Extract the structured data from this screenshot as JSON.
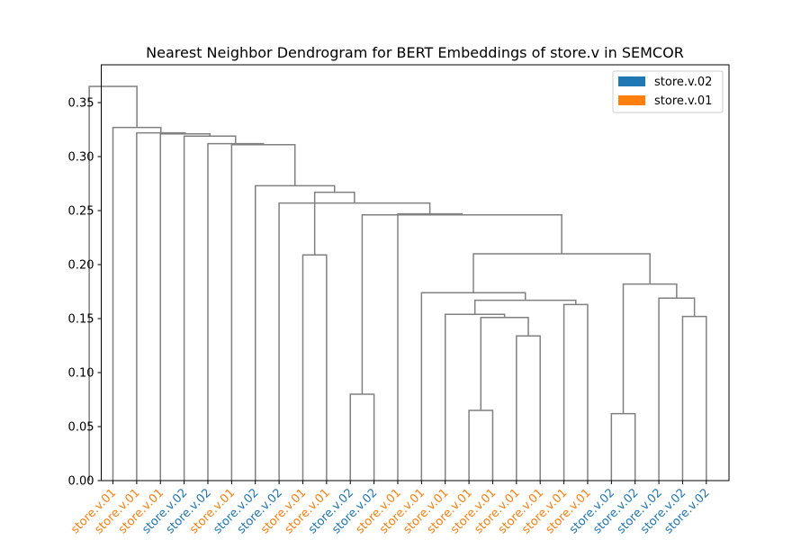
{
  "chart_data": {
    "type": "dendrogram",
    "title": "Nearest Neighbor Dendrogram for BERT Embeddings of store.v in SEMCOR",
    "xlabel": "",
    "ylabel": "",
    "ylim": [
      0,
      0.385
    ],
    "yticks": [
      "0.00",
      "0.05",
      "0.10",
      "0.15",
      "0.20",
      "0.25",
      "0.30",
      "0.35"
    ],
    "ytick_values": [
      0,
      0.05,
      0.1,
      0.15,
      0.2,
      0.25,
      0.3,
      0.35
    ],
    "grid": false,
    "legend_position": "top-right",
    "line_color": "#808080",
    "legend": [
      {
        "label": "store.v.02",
        "color": "#1f77b4"
      },
      {
        "label": "store.v.01",
        "color": "#ff7f0e"
      }
    ],
    "leaves": [
      {
        "label": "store.v.01",
        "class": "store.v.01"
      },
      {
        "label": "store.v.01",
        "class": "store.v.01"
      },
      {
        "label": "store.v.01",
        "class": "store.v.01"
      },
      {
        "label": "store.v.02",
        "class": "store.v.02"
      },
      {
        "label": "store.v.02",
        "class": "store.v.02"
      },
      {
        "label": "store.v.01",
        "class": "store.v.01"
      },
      {
        "label": "store.v.02",
        "class": "store.v.02"
      },
      {
        "label": "store.v.02",
        "class": "store.v.02"
      },
      {
        "label": "store.v.01",
        "class": "store.v.01"
      },
      {
        "label": "store.v.01",
        "class": "store.v.01"
      },
      {
        "label": "store.v.02",
        "class": "store.v.02"
      },
      {
        "label": "store.v.02",
        "class": "store.v.02"
      },
      {
        "label": "store.v.01",
        "class": "store.v.01"
      },
      {
        "label": "store.v.01",
        "class": "store.v.01"
      },
      {
        "label": "store.v.01",
        "class": "store.v.01"
      },
      {
        "label": "store.v.01",
        "class": "store.v.01"
      },
      {
        "label": "store.v.01",
        "class": "store.v.01"
      },
      {
        "label": "store.v.01",
        "class": "store.v.01"
      },
      {
        "label": "store.v.01",
        "class": "store.v.01"
      },
      {
        "label": "store.v.01",
        "class": "store.v.01"
      },
      {
        "label": "store.v.01",
        "class": "store.v.01"
      },
      {
        "label": "store.v.02",
        "class": "store.v.02"
      },
      {
        "label": "store.v.02",
        "class": "store.v.02"
      },
      {
        "label": "store.v.02",
        "class": "store.v.02"
      },
      {
        "label": "store.v.02",
        "class": "store.v.02"
      },
      {
        "label": "store.v.02",
        "class": "store.v.02"
      }
    ],
    "merges": [
      {
        "a": 21,
        "b": 22,
        "height": 0.062
      },
      {
        "a": 15,
        "b": 16,
        "height": 0.065
      },
      {
        "a": 10,
        "b": 11,
        "height": 0.08
      },
      {
        "a": 17,
        "b": 18,
        "height": 0.134
      },
      {
        "a": 24,
        "b": 25,
        "height": 0.152
      },
      {
        "a": 27,
        "b": 29,
        "height": 0.151
      },
      {
        "a": 14,
        "b": 31,
        "height": 0.154
      },
      {
        "a": 19,
        "b": 20,
        "height": 0.163
      },
      {
        "a": 32,
        "b": 33,
        "height": 0.167
      },
      {
        "a": 23,
        "b": 30,
        "height": 0.169
      },
      {
        "a": 13,
        "b": 34,
        "height": 0.174
      },
      {
        "a": 26,
        "b": 35,
        "height": 0.182
      },
      {
        "a": 36,
        "b": 37,
        "height": 0.21
      },
      {
        "a": 8,
        "b": 9,
        "height": 0.209
      },
      {
        "a": 28,
        "b": 38,
        "height": 0.246
      },
      {
        "a": 12,
        "b": 40,
        "height": 0.247
      },
      {
        "a": 7,
        "b": 41,
        "height": 0.257
      },
      {
        "a": 39,
        "b": 42,
        "height": 0.267
      },
      {
        "a": 6,
        "b": 43,
        "height": 0.273
      },
      {
        "a": 5,
        "b": 44,
        "height": 0.311
      },
      {
        "a": 4,
        "b": 45,
        "height": 0.312
      },
      {
        "a": 3,
        "b": 46,
        "height": 0.319
      },
      {
        "a": 2,
        "b": 47,
        "height": 0.321
      },
      {
        "a": 1,
        "b": 48,
        "height": 0.322
      },
      {
        "a": 0,
        "b": 49,
        "height": 0.327
      },
      {
        "a": -1,
        "b": 50,
        "height": 0.365
      }
    ]
  }
}
